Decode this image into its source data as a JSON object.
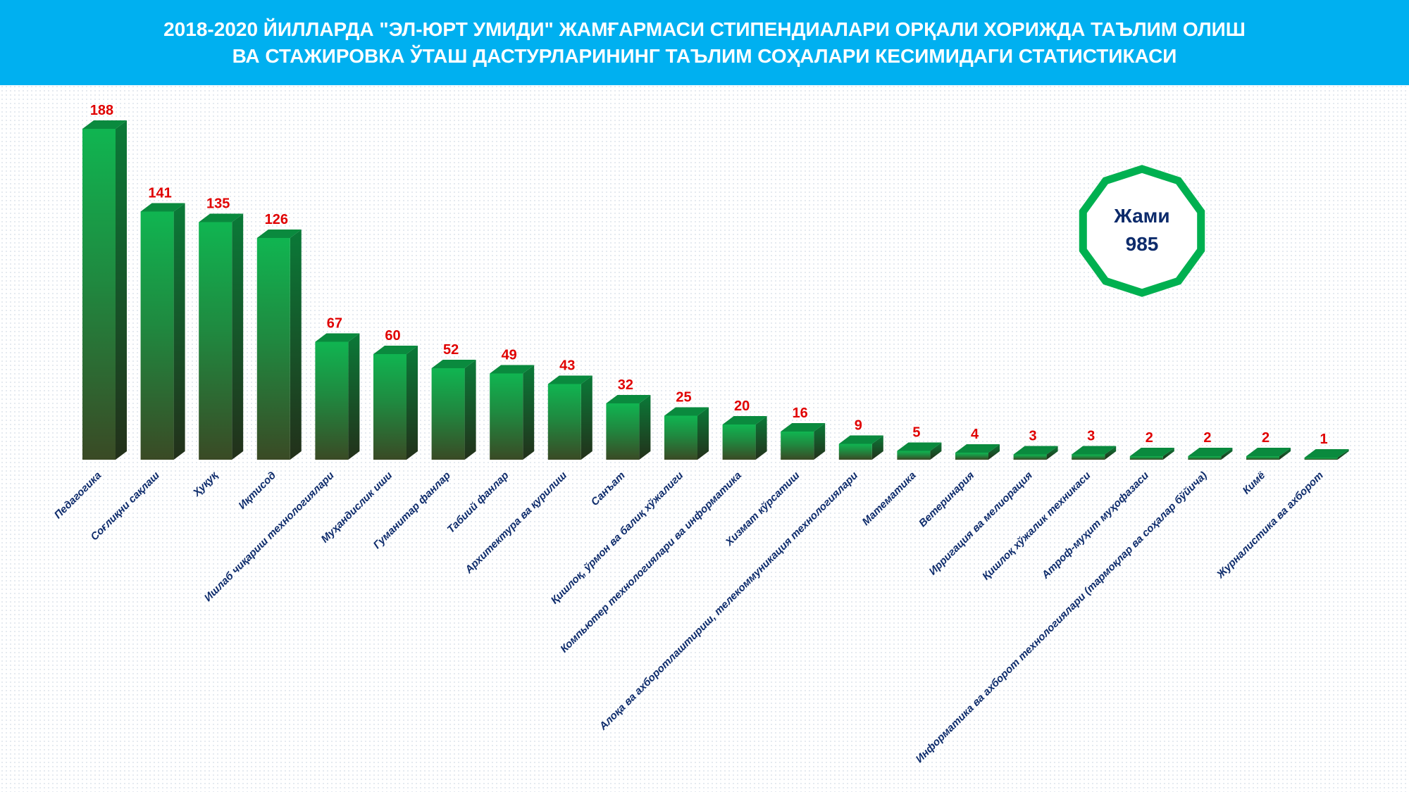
{
  "header": {
    "title_line1": "2018-2020 ЙИЛЛАРДА \"ЭЛ-ЮРТ УМИДИ\" ЖАМҒАРМАСИ СТИПЕНДИАЛАРИ ОРҚАЛИ ХОРИЖДА ТАЪЛИМ ОЛИШ",
    "title_line2": "ВА СТАЖИРОВКА ЎТАШ ДАСТУРЛАРИНИНГ ТАЪЛИМ СОҲАЛАРИ КЕСИМИДАГИ СТАТИСТИКАСИ"
  },
  "total": {
    "label": "Жами",
    "value": "985"
  },
  "colors": {
    "header": "#00b0f0",
    "bar_top": "#0a8a3e",
    "bar_front": "#10b050",
    "bar_side": "#0a6a30",
    "value_label": "#e00000",
    "category_label": "#0d2b6b",
    "total_ring": "#00b050"
  },
  "chart_data": {
    "type": "bar",
    "title": "2018-2020 ЙИЛЛАРДА \"ЭЛ-ЮРТ УМИДИ\" ЖАМҒАРМАСИ СТИПЕНДИАЛАРИ ОРҚАЛИ ХОРИЖДА ТАЪЛИМ ОЛИШ ВА СТАЖИРОВКА ЎТАШ ДАСТУРЛАРИНИНГ ТАЪЛИМ СОҲАЛАРИ КЕСИМИДАГИ СТАТИСТИКАСИ",
    "xlabel": "",
    "ylabel": "",
    "ylim": [
      0,
      188
    ],
    "grid": false,
    "legend": "none",
    "categories": [
      "Педагогика",
      "Соғлиқни сақлаш",
      "Ҳуқуқ",
      "Иқтисод",
      "Ишлаб чиқариш технологиялари",
      "Муҳандислик иши",
      "Гуманитар фанлар",
      "Табиий фанлар",
      "Архитектура ва қурилиш",
      "Санъат",
      "Қишлоқ, ўрмон ва балиқ хўжалиги",
      "Компьютер технологиялари ва информатика",
      "Хизмат кўрсатиш",
      "Алоқа ва ахборотлаштириш, телекоммуникация технологиялари",
      "Математика",
      "Ветеринария",
      "Ирригация ва мелиорация",
      "Қишлоқ хўжалик техникаси",
      "Атроф-муҳит муҳофазаси",
      "Информатика ва ахборот технологиялари (тармоқлар ва соҳалар бўйича)",
      "Кимё",
      "Журналистика ва ахборот"
    ],
    "values": [
      188,
      141,
      135,
      126,
      67,
      60,
      52,
      49,
      43,
      32,
      25,
      20,
      16,
      9,
      5,
      4,
      3,
      3,
      2,
      2,
      2,
      1
    ]
  }
}
